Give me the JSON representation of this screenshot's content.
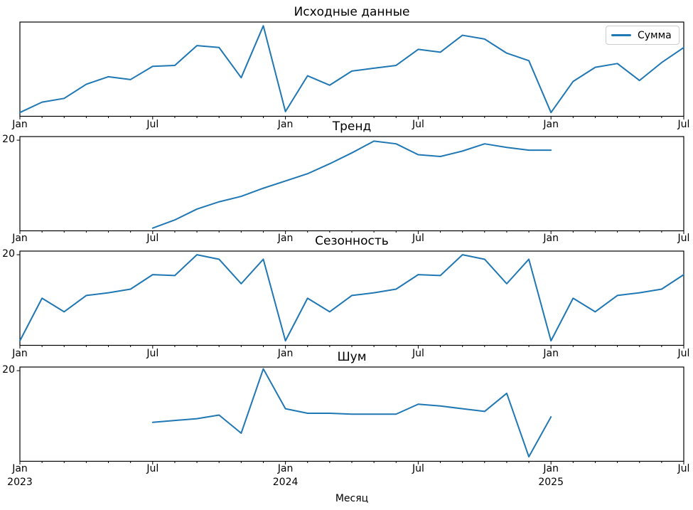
{
  "figure": {
    "background": "#ffffff",
    "text_color": "#000000",
    "spine_color": "#000000"
  },
  "chart_data": {
    "type": "line",
    "line_color": "#1f77b4",
    "xlabel": "Месяц",
    "x_unit": "month",
    "x_start": "Jan 2023",
    "x_end": "Jul 2025",
    "n_points": 31,
    "grid": "off",
    "x_major_ticks": {
      "indices": [
        0,
        6,
        12,
        18,
        24,
        30
      ],
      "labels": [
        "Jan",
        "Jul",
        "Jan",
        "Jul",
        "Jan",
        "Jul"
      ]
    },
    "x_year_labels": [
      {
        "index": 0,
        "label": "2023"
      },
      {
        "index": 12,
        "label": "2024"
      },
      {
        "index": 24,
        "label": "2025"
      }
    ],
    "x_minor_ticks": "monthly",
    "subplots": [
      {
        "title": "Исходные данные",
        "legend": {
          "position": "upper right",
          "label": "Сумма"
        },
        "ylim": [
          10,
          20
        ],
        "y_tick_labels": [],
        "series": [
          {
            "name": "Сумма",
            "start_index": 0,
            "values": [
              10.4,
              11.5,
              11.9,
              13.4,
              14.2,
              13.9,
              15.3,
              15.4,
              17.5,
              17.3,
              14.1,
              19.6,
              10.5,
              14.3,
              13.3,
              14.8,
              15.1,
              15.4,
              17.1,
              16.8,
              18.6,
              18.2,
              16.7,
              15.9,
              10.4,
              13.7,
              15.2,
              15.6,
              13.8,
              15.7,
              17.3
            ]
          }
        ]
      },
      {
        "title": "Тренд",
        "ylim": [
          10,
          20.4
        ],
        "y_tick_labels": [
          {
            "value": 20,
            "label": "20"
          }
        ],
        "series": [
          {
            "name": "Тренд",
            "start_index": 6,
            "values": [
              10.3,
              11.2,
              12.4,
              13.2,
              13.8,
              14.7,
              15.5,
              16.3,
              17.4,
              18.6,
              19.9,
              19.6,
              18.4,
              18.2,
              18.8,
              19.6,
              19.2,
              18.9,
              18.9
            ]
          }
        ]
      },
      {
        "title": "Сезонность",
        "ylim": [
          10,
          20.4
        ],
        "y_tick_labels": [
          {
            "value": 20,
            "label": "20"
          }
        ],
        "series": [
          {
            "name": "Сезонность",
            "start_index": 0,
            "values": [
              10.5,
              15.2,
              13.7,
              15.5,
              15.8,
              16.2,
              17.8,
              17.7,
              20.0,
              19.5,
              16.8,
              19.5,
              10.5,
              15.2,
              13.7,
              15.5,
              15.8,
              16.2,
              17.8,
              17.7,
              20.0,
              19.5,
              16.8,
              19.5,
              10.5,
              15.2,
              13.7,
              15.5,
              15.8,
              16.2,
              17.8
            ]
          }
        ]
      },
      {
        "title": "Шум",
        "ylim": [
          10,
          20.4
        ],
        "y_tick_labels": [
          {
            "value": 20,
            "label": "20"
          }
        ],
        "series": [
          {
            "name": "Шум",
            "start_index": 6,
            "values": [
              14.3,
              14.5,
              14.7,
              15.1,
              13.1,
              20.2,
              15.8,
              15.3,
              15.3,
              15.2,
              15.2,
              15.2,
              16.3,
              16.1,
              15.8,
              15.5,
              17.5,
              10.5,
              14.9
            ]
          }
        ]
      }
    ]
  }
}
